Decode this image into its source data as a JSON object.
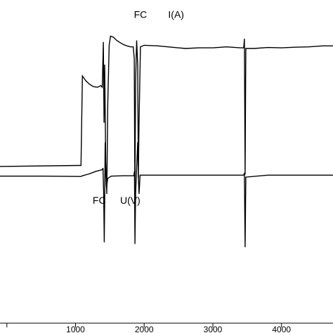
{
  "chart_data": {
    "type": "line",
    "title": "",
    "xlabel": "",
    "ylabel": "",
    "xlim": [
      -100,
      4750
    ],
    "ylim": [
      0,
      100
    ],
    "x_ticks": [
      0,
      1000,
      2000,
      3000,
      4000
    ],
    "x_tick_labels": [
      "",
      "1000",
      "2000",
      "3000",
      "4000"
    ],
    "grid": false,
    "colors": {
      "line": "#000000",
      "background": "#ffffff"
    },
    "annotations": [
      {
        "text": "FC",
        "series": "I",
        "x": 1850,
        "y": 94.5
      },
      {
        "text": "I(A)",
        "series": "I",
        "x": 2350,
        "y": 94.5
      },
      {
        "text": "FC",
        "series": "U",
        "x": 1250,
        "y": 37
      },
      {
        "text": "U(V)",
        "series": "U",
        "x": 1650,
        "y": 37
      }
    ],
    "series": [
      {
        "key": "I",
        "values": [
          [
            -100,
            48.5
          ],
          [
            1050,
            48.8
          ],
          [
            1080,
            48.8
          ],
          [
            1100,
            76.5
          ],
          [
            1150,
            75.0
          ],
          [
            1200,
            74.0
          ],
          [
            1260,
            73.2
          ],
          [
            1320,
            73.0
          ],
          [
            1370,
            73.5
          ],
          [
            1390,
            73.0
          ],
          [
            1405,
            87.0
          ],
          [
            1415,
            62.0
          ],
          [
            1425,
            80.0
          ],
          [
            1440,
            50.0
          ],
          [
            1455,
            40.0
          ],
          [
            1470,
            68.0
          ],
          [
            1490,
            86.0
          ],
          [
            1510,
            88.8
          ],
          [
            1550,
            88.5
          ],
          [
            1600,
            87.5
          ],
          [
            1650,
            86.8
          ],
          [
            1700,
            86.2
          ],
          [
            1750,
            85.8
          ],
          [
            1800,
            85.5
          ],
          [
            1840,
            85.5
          ],
          [
            1855,
            82.0
          ],
          [
            1865,
            40.0
          ],
          [
            1875,
            75.0
          ],
          [
            1890,
            87.5
          ],
          [
            1905,
            80.0
          ],
          [
            1915,
            45.0
          ],
          [
            1925,
            62.0
          ],
          [
            1945,
            85.5
          ],
          [
            2000,
            86.0
          ],
          [
            2200,
            85.8
          ],
          [
            2400,
            85.4
          ],
          [
            2600,
            85.0
          ],
          [
            2800,
            85.2
          ],
          [
            3000,
            85.2
          ],
          [
            3200,
            85.5
          ],
          [
            3400,
            85.2
          ],
          [
            3450,
            85.2
          ],
          [
            3460,
            88.0
          ],
          [
            3470,
            46.0
          ],
          [
            3480,
            85.0
          ],
          [
            3600,
            85.0
          ],
          [
            3800,
            85.3
          ],
          [
            4000,
            85.2
          ],
          [
            4200,
            85.4
          ],
          [
            4400,
            85.5
          ],
          [
            4600,
            85.8
          ],
          [
            4750,
            85.8
          ]
        ]
      },
      {
        "key": "U",
        "values": [
          [
            -100,
            45.5
          ],
          [
            500,
            45.5
          ],
          [
            1050,
            45.4
          ],
          [
            1080,
            45.4
          ],
          [
            1100,
            45.6
          ],
          [
            1200,
            46.2
          ],
          [
            1300,
            47.0
          ],
          [
            1390,
            47.5
          ],
          [
            1400,
            48.0
          ],
          [
            1410,
            40.0
          ],
          [
            1418,
            25.0
          ],
          [
            1425,
            38.0
          ],
          [
            1432,
            56.0
          ],
          [
            1440,
            47.0
          ],
          [
            1450,
            42.0
          ],
          [
            1470,
            44.8
          ],
          [
            1520,
            45.5
          ],
          [
            1700,
            45.6
          ],
          [
            1850,
            45.6
          ],
          [
            1858,
            47.0
          ],
          [
            1866,
            24.5
          ],
          [
            1875,
            40.0
          ],
          [
            1890,
            48.0
          ],
          [
            1905,
            56.0
          ],
          [
            1915,
            46.0
          ],
          [
            1925,
            40.0
          ],
          [
            1940,
            45.8
          ],
          [
            2200,
            45.8
          ],
          [
            2600,
            45.8
          ],
          [
            3000,
            45.8
          ],
          [
            3450,
            45.8
          ],
          [
            3460,
            46.5
          ],
          [
            3470,
            23.5
          ],
          [
            3480,
            45.2
          ],
          [
            3800,
            45.8
          ],
          [
            4200,
            45.8
          ],
          [
            4750,
            45.8
          ]
        ]
      }
    ]
  }
}
